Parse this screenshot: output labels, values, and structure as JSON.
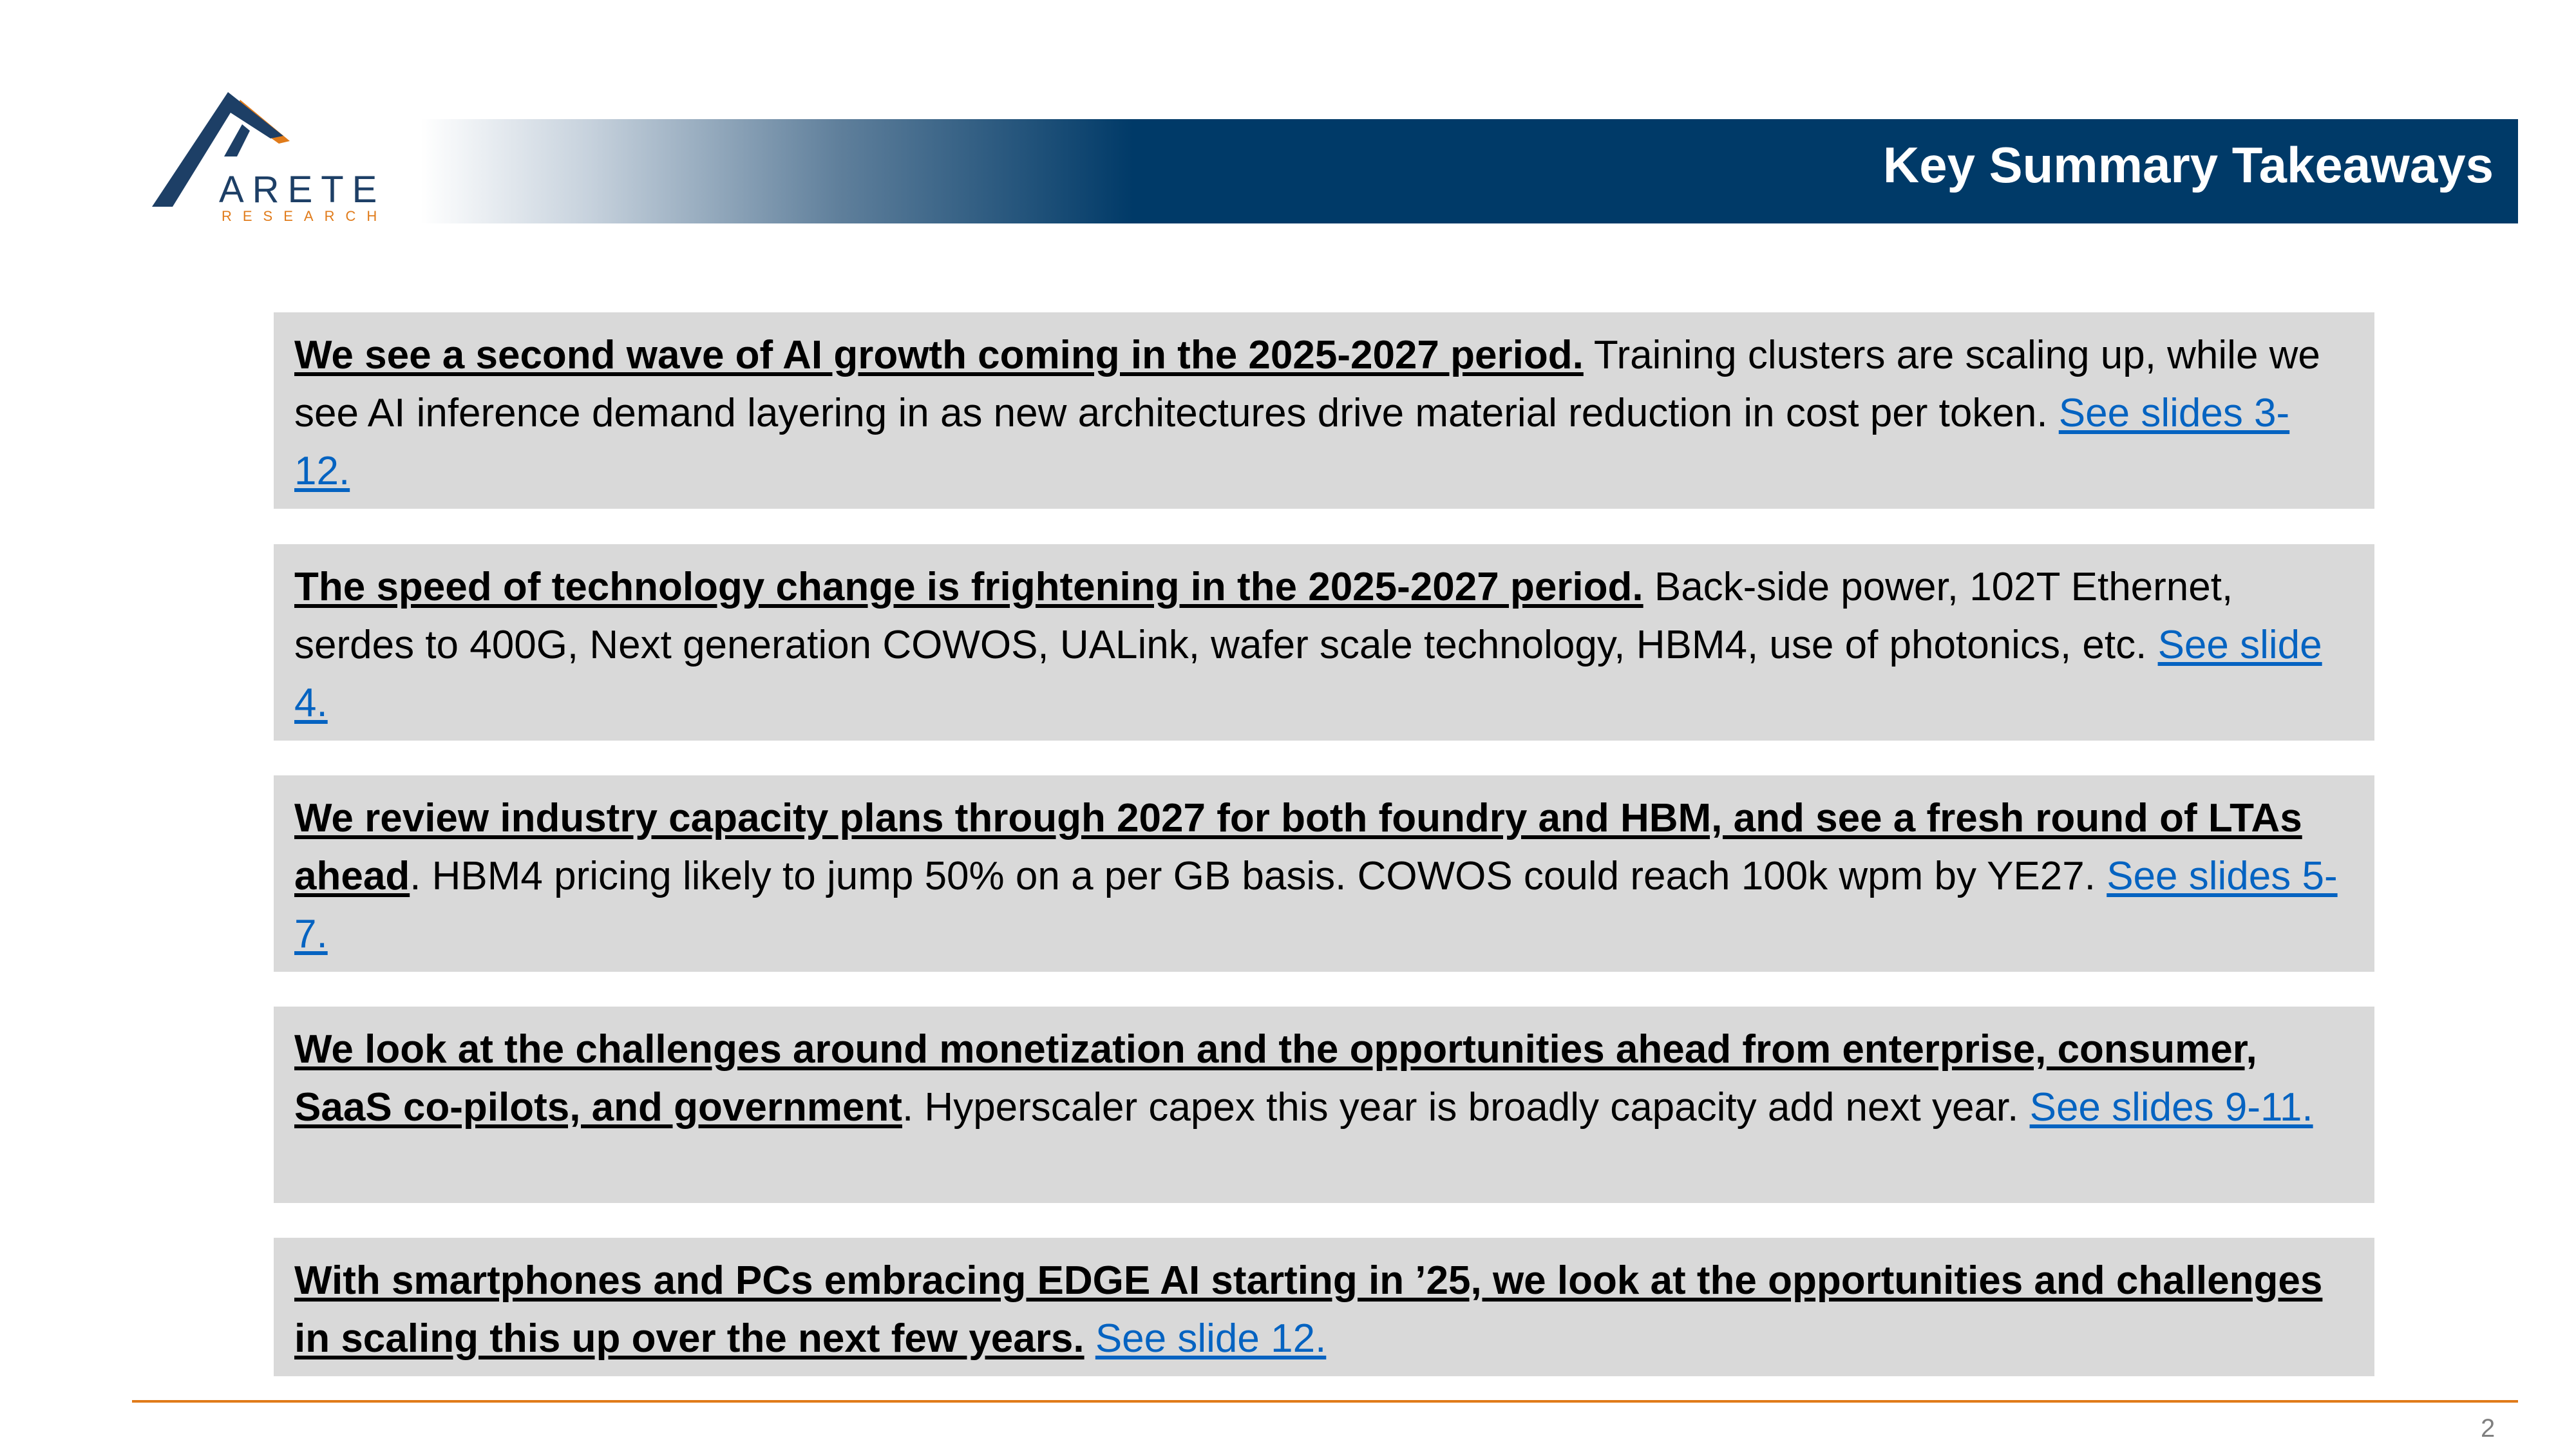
{
  "logo": {
    "name": "ARETE",
    "subtitle": "RESEARCH",
    "colors": {
      "navy": "#1d3f66",
      "orange": "#e07b1a"
    }
  },
  "header": {
    "title": "Key Summary Takeaways",
    "bar_color": "#003a68"
  },
  "takeaways": [
    {
      "lead": "We see a second wave of AI growth coming in the 2025-2027 period.",
      "body": " Training clusters are scaling up, while we see AI inference demand layering in as new architectures drive material reduction in cost per token. ",
      "link": "See slides 3-12."
    },
    {
      "lead": "The speed of technology change is frightening in the 2025-2027 period.",
      "body": " Back-side power, 102T Ethernet, serdes to 400G, Next generation COWOS, UALink, wafer scale technology, HBM4, use of photonics, etc. ",
      "link": "See slide 4."
    },
    {
      "lead": "We review industry capacity plans through 2027 for both foundry and HBM, and see a fresh round of LTAs ahead",
      "body": ". HBM4 pricing likely to jump 50% on a per GB basis. COWOS could reach 100k wpm by YE27. ",
      "link": "See slides 5-7."
    },
    {
      "lead": "We look at the challenges around monetization and the opportunities ahead from enterprise, consumer, SaaS co-pilots, and government",
      "body": ". Hyperscaler capex this year is broadly capacity add next year. ",
      "link": "See slides 9-11."
    },
    {
      "lead": "With smartphones and PCs embracing EDGE AI starting in ’25, we look at the opportunities and challenges in scaling this up over the next few years.",
      "body": " ",
      "link": "See slide 12."
    }
  ],
  "footer": {
    "page_number": "2",
    "rule_color": "#e07b1a"
  },
  "colors": {
    "box_bg": "#d9d9d9",
    "link": "#0563c1"
  }
}
